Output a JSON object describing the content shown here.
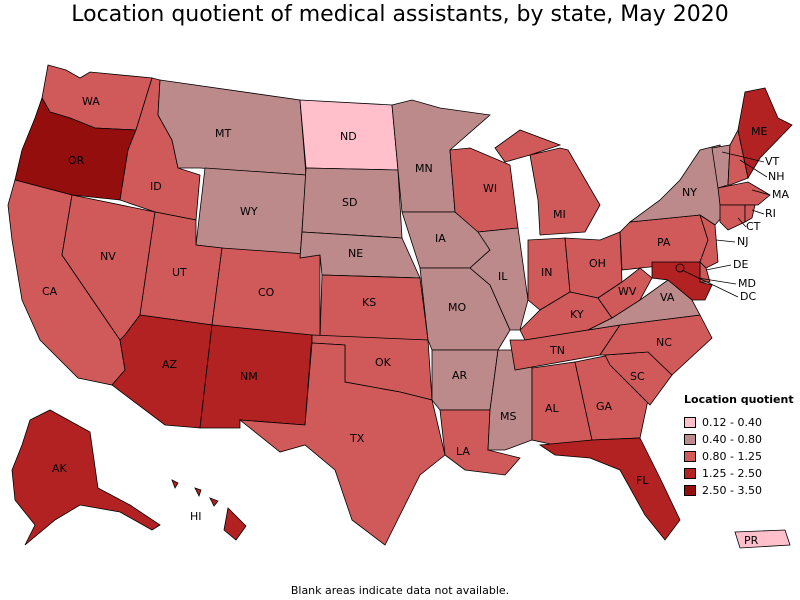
{
  "title": "Location quotient of medical assistants, by state, May 2020",
  "footnote": "Blank areas indicate data not available.",
  "legend": {
    "title": "Location quotient",
    "items": [
      {
        "label": "0.12 - 0.40",
        "color": "#ffc0cb"
      },
      {
        "label": "0.40 - 0.80",
        "color": "#bc8a8a"
      },
      {
        "label": "0.80 - 1.25",
        "color": "#d05a5a"
      },
      {
        "label": "1.25 - 2.50",
        "color": "#b22222"
      },
      {
        "label": "2.50 - 3.50",
        "color": "#950e0e"
      }
    ]
  },
  "states": {
    "WA": 2,
    "OR": 4,
    "CA": 2,
    "NV": 2,
    "ID": 2,
    "MT": 1,
    "WY": 1,
    "UT": 2,
    "AZ": 3,
    "CO": 2,
    "NM": 3,
    "ND": 0,
    "SD": 1,
    "NE": 1,
    "KS": 2,
    "OK": 2,
    "TX": 2,
    "MN": 1,
    "IA": 1,
    "MO": 1,
    "AR": 1,
    "LA": 2,
    "WI": 2,
    "IL": 1,
    "MS": 1,
    "MI": 2,
    "IN": 2,
    "KY": 2,
    "TN": 2,
    "AL": 2,
    "OH": 2,
    "WV": 2,
    "GA": 2,
    "FL": 3,
    "SC": 2,
    "NC": 2,
    "VA": 1,
    "PA": 2,
    "NY": 1,
    "ME": 3,
    "VT": 1,
    "NH": 2,
    "MA": 2,
    "RI": 2,
    "CT": 2,
    "NJ": 2,
    "DE": 2,
    "MD": 3,
    "DC": 3,
    "AK": 3,
    "HI": 3,
    "PR": 0
  }
}
